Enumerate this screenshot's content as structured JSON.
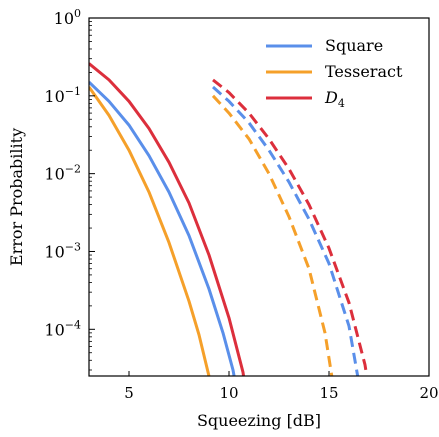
{
  "chart_data": {
    "type": "line",
    "xlabel": "Squeezing [dB]",
    "ylabel": "Error Probability",
    "xlim": [
      3,
      20
    ],
    "ylim_exponent": [
      -4.6,
      0
    ],
    "yscale": "log",
    "grid": false,
    "legend_position": "top-right",
    "x_ticks": [
      5,
      10,
      15,
      20
    ],
    "x_tick_labels": [
      "5",
      "10",
      "15",
      "20"
    ],
    "y_ticks": [
      {
        "exp": 0,
        "base": "10",
        "sup": "0"
      },
      {
        "exp": -1,
        "base": "10",
        "sup": "−1"
      },
      {
        "exp": -2,
        "base": "10",
        "sup": "−2"
      },
      {
        "exp": -3,
        "base": "10",
        "sup": "−3"
      },
      {
        "exp": -4,
        "base": "10",
        "sup": "−4"
      }
    ],
    "series": [
      {
        "name": "Square",
        "color": "#5a8fea",
        "style": "solid",
        "x": [
          3,
          4,
          5,
          6,
          7,
          8,
          9,
          9.7,
          10.2,
          10.6,
          11.0
        ],
        "y": [
          0.15,
          0.085,
          0.042,
          0.017,
          0.0058,
          0.0016,
          0.00033,
          9e-05,
          3e-05,
          8e-06,
          2.5e-06
        ]
      },
      {
        "name": "Tesseract",
        "color": "#f5a02a",
        "style": "solid",
        "x": [
          3,
          4,
          5,
          6,
          7,
          8,
          8.5,
          9.0,
          9.4,
          9.6
        ],
        "y": [
          0.13,
          0.056,
          0.02,
          0.0058,
          0.0013,
          0.00023,
          8.5e-05,
          2.5e-05,
          6e-06,
          2.5e-06
        ]
      },
      {
        "name": "D4",
        "color": "#dc2f3c",
        "style": "solid",
        "x": [
          3,
          4,
          5,
          6,
          7,
          8,
          9,
          10,
          10.7,
          11.3
        ],
        "y": [
          0.26,
          0.16,
          0.085,
          0.038,
          0.014,
          0.0042,
          0.0009,
          0.00014,
          2.8e-05,
          2.5e-06
        ]
      },
      {
        "name": "Square (dashed)",
        "color": "#5a8fea",
        "style": "dashed",
        "x": [
          9.2,
          10,
          11,
          12,
          13,
          14,
          15,
          16,
          16.5,
          16.9
        ],
        "y": [
          0.13,
          0.085,
          0.045,
          0.02,
          0.0078,
          0.0026,
          0.0007,
          0.00011,
          2e-05,
          2.5e-06
        ]
      },
      {
        "name": "Tesseract (dashed)",
        "color": "#f5a02a",
        "style": "dashed",
        "x": [
          9.2,
          10,
          11,
          12,
          13,
          14,
          14.8,
          15.2,
          15.5
        ],
        "y": [
          0.1,
          0.06,
          0.028,
          0.01,
          0.0028,
          0.0006,
          9e-05,
          2e-05,
          2.5e-06
        ]
      },
      {
        "name": "D4 (dashed)",
        "color": "#dc2f3c",
        "style": "dashed",
        "x": [
          9.2,
          10,
          11,
          12,
          13,
          14,
          15,
          16,
          16.8,
          17.5
        ],
        "y": [
          0.16,
          0.11,
          0.06,
          0.028,
          0.0115,
          0.004,
          0.0011,
          0.00022,
          3.5e-05,
          2.5e-06
        ]
      }
    ],
    "legend": [
      {
        "label": "Square",
        "color": "#5a8fea",
        "italic": false
      },
      {
        "label": "Tesseract",
        "color": "#f5a02a",
        "italic": false
      },
      {
        "label_main": "D",
        "label_sub": "4",
        "color": "#dc2f3c",
        "italic": true
      }
    ]
  }
}
